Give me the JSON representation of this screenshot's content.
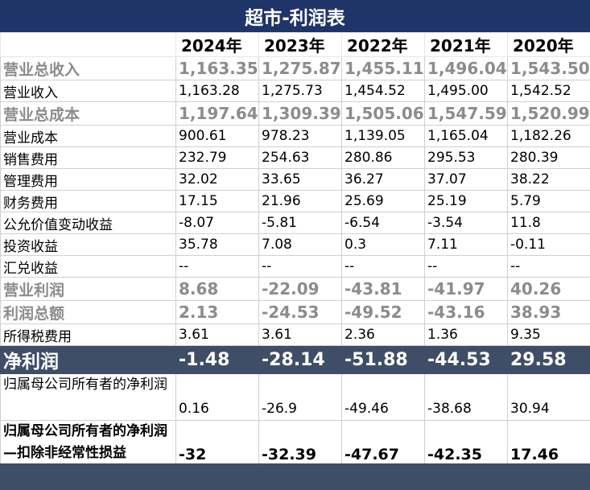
{
  "title": "超市-利润表",
  "years": [
    "2024年",
    "2023年",
    "2022年",
    "2021年",
    "2020年"
  ],
  "rows": [
    {
      "label": "营业总收入",
      "style": "gray",
      "values": [
        "1,163.35",
        "1,275.87",
        "1,455.11",
        "1,496.04",
        "1,543.50"
      ]
    },
    {
      "label": "营业收入",
      "style": "plain",
      "values": [
        "1,163.28",
        "1,275.73",
        "1,454.52",
        "1,495.00",
        "1,542.52"
      ]
    },
    {
      "label": "营业总成本",
      "style": "gray",
      "values": [
        "1,197.64",
        "1,309.39",
        "1,505.06",
        "1,547.59",
        "1,520.99"
      ]
    },
    {
      "label": "营业成本",
      "style": "plain",
      "values": [
        "900.61",
        "978.23",
        "1,139.05",
        "1,165.04",
        "1,182.26"
      ]
    },
    {
      "label": "销售费用",
      "style": "plain",
      "values": [
        "232.79",
        "254.63",
        "280.86",
        "295.53",
        "280.39"
      ]
    },
    {
      "label": "管理费用",
      "style": "plain",
      "values": [
        "32.02",
        "33.65",
        "36.27",
        "37.07",
        "38.22"
      ]
    },
    {
      "label": "财务费用",
      "style": "plain",
      "values": [
        "17.15",
        "21.96",
        "25.69",
        "25.19",
        "5.79"
      ]
    },
    {
      "label": "公允价值变动收益",
      "style": "plain",
      "values": [
        "-8.07",
        "-5.81",
        "-6.54",
        "-3.54",
        "11.8"
      ]
    },
    {
      "label": "投资收益",
      "style": "plain",
      "values": [
        "35.78",
        "7.08",
        "0.3",
        "7.11",
        "-0.11"
      ]
    },
    {
      "label": "汇兑收益",
      "style": "plain",
      "values": [
        "--",
        "--",
        "--",
        "--",
        "--"
      ]
    },
    {
      "label": "营业利润",
      "style": "gray",
      "values": [
        "8.68",
        "-22.09",
        "-43.81",
        "-41.97",
        "40.26"
      ]
    },
    {
      "label": "利润总额",
      "style": "gray",
      "values": [
        "2.13",
        "-24.53",
        "-49.52",
        "-43.16",
        "38.93"
      ]
    },
    {
      "label": "所得税费用",
      "style": "plain",
      "values": [
        "3.61",
        "3.61",
        "2.36",
        "1.36",
        "9.35"
      ]
    },
    {
      "label": "净利润",
      "style": "net",
      "values": [
        "-1.48",
        "-28.14",
        "-51.88",
        "-44.53",
        "29.58"
      ]
    },
    {
      "label": "归属母公司所有者的净利润",
      "style": "attr",
      "values": [
        "0.16",
        "-26.9",
        "-49.46",
        "-38.68",
        "30.94"
      ]
    },
    {
      "label": "归属母公司所有者的净利润—扣除非经常性损益",
      "style": "ded",
      "values": [
        "-32",
        "-32.39",
        "-47.67",
        "-42.35",
        "17.46"
      ]
    }
  ]
}
